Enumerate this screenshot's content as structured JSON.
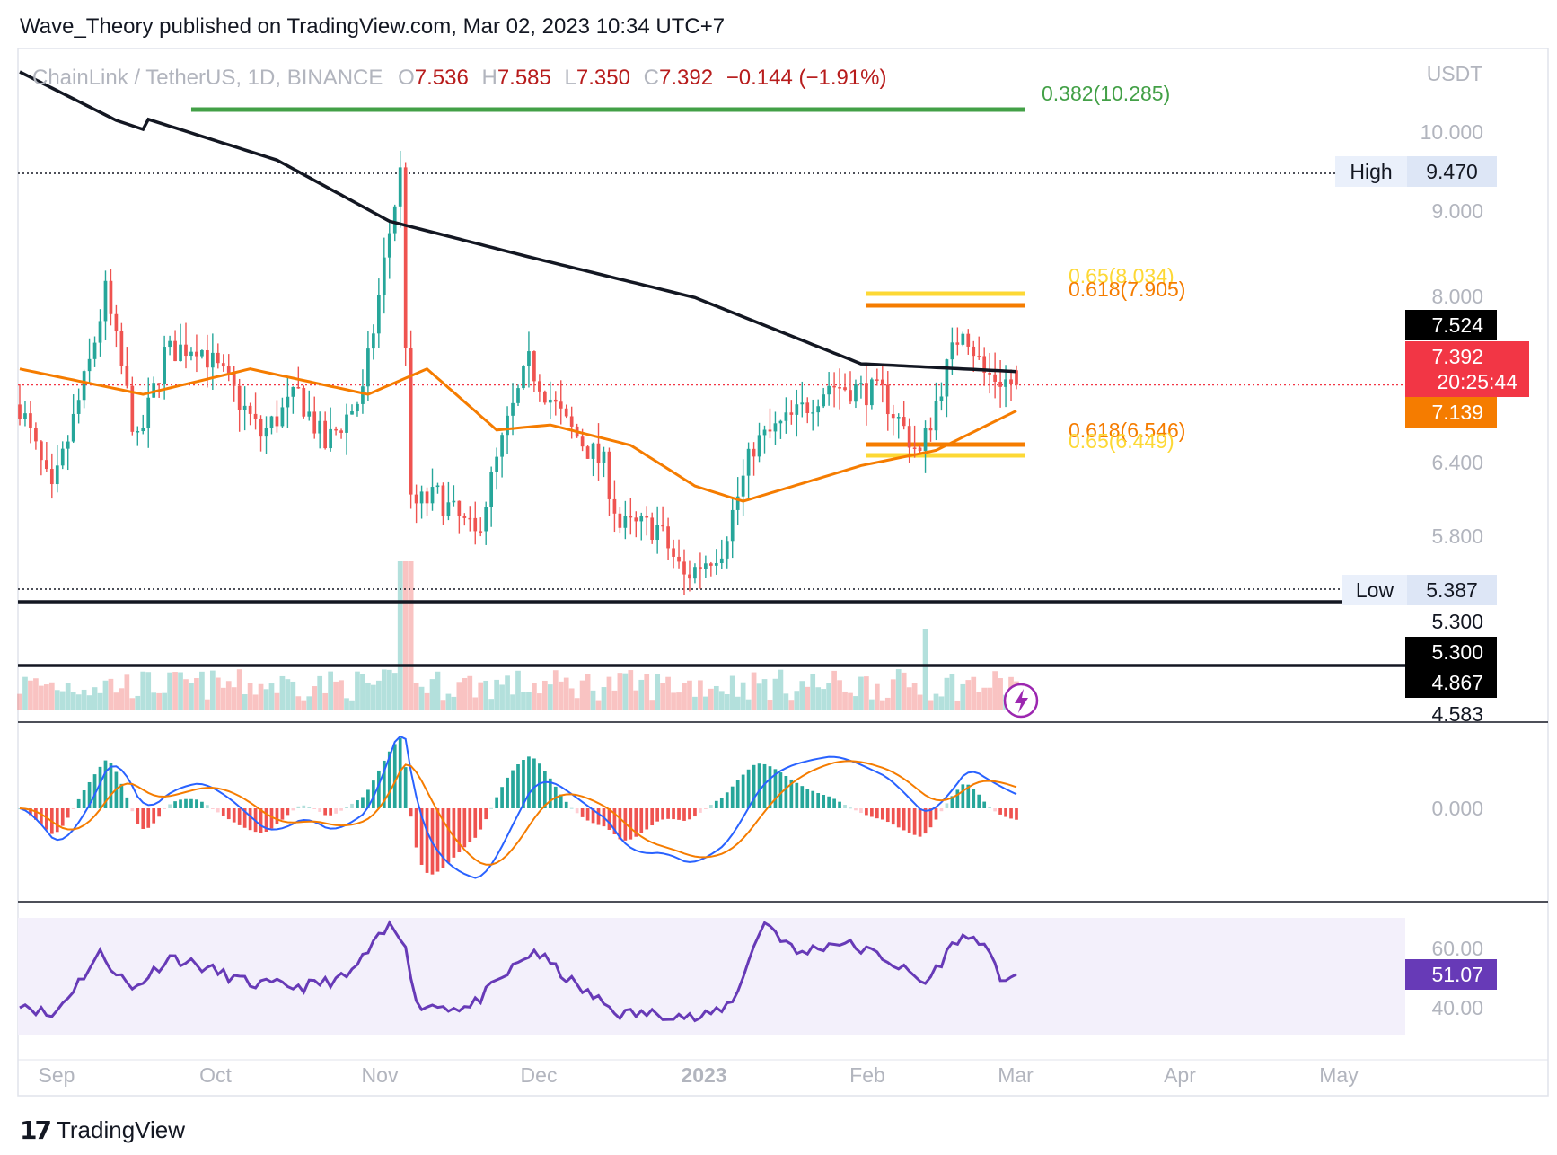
{
  "header": {
    "publisher": "Wave_Theory published on TradingView.com, Mar 02, 2023 10:34 UTC+7"
  },
  "legend": {
    "symbol": "ChainLink / TetherUS, 1D, BINANCE",
    "o_label": "O",
    "o_value": "7.536",
    "h_label": "H",
    "h_value": "7.585",
    "l_label": "L",
    "l_value": "7.350",
    "c_label": "C",
    "c_value": "7.392",
    "change": "−0.144 (−1.91%)"
  },
  "price_axis": {
    "currency": "USDT",
    "ticks": [
      "10.000",
      "9.000",
      "8.000",
      "6.400",
      "5.800",
      "5.300",
      "4.583"
    ],
    "high_label": "High",
    "high_value": "9.470",
    "low_label": "Low",
    "low_value": "5.387",
    "ma200_value": "7.524",
    "last_price": "7.392",
    "countdown": "20:25:44",
    "ma50_value": "7.139",
    "support1": "5.300",
    "support2": "4.867"
  },
  "fib_labels": {
    "top": "0.382(10.285)",
    "upper_65": "0.65(8.034)",
    "upper_618": "0.618(7.905)",
    "lower_618": "0.618(6.546)",
    "lower_65": "0.65(6.449)"
  },
  "macd_axis": {
    "zero": "0.000"
  },
  "rsi_axis": {
    "upper": "60.00",
    "lower": "40.00",
    "value": "51.07"
  },
  "time_axis": [
    "Sep",
    "Oct",
    "Nov",
    "Dec",
    "2023",
    "Feb",
    "Mar",
    "Apr",
    "May"
  ],
  "footer": {
    "logo_mark": "17",
    "logo_name": "TradingView"
  },
  "colors": {
    "up": "#26a69a",
    "down": "#ef5350",
    "ma200": "#131722",
    "ma50": "#f57c00",
    "fib_green": "#43a047",
    "fib_orange": "#f57c00",
    "fib_yellow": "#fdd835",
    "macd": "#2962ff",
    "signal": "#f57c00",
    "rsi": "#673ab7",
    "last_price_bg": "#f23645"
  },
  "chart_data": {
    "type": "candlestick",
    "title": "ChainLink / TetherUS, 1D, BINANCE",
    "x_range": [
      "2022-08-28",
      "2023-03-02"
    ],
    "ylim": [
      4.583,
      10.6
    ],
    "price_keypoints": [
      [
        "2022-08-28",
        7.2
      ],
      [
        "2022-09-03",
        6.3
      ],
      [
        "2022-09-10",
        7.6
      ],
      [
        "2022-09-13",
        8.3
      ],
      [
        "2022-09-19",
        6.8
      ],
      [
        "2022-09-24",
        7.7
      ],
      [
        "2022-09-30",
        7.8
      ],
      [
        "2022-10-06",
        7.4
      ],
      [
        "2022-10-12",
        6.9
      ],
      [
        "2022-10-19",
        7.3
      ],
      [
        "2022-10-24",
        6.8
      ],
      [
        "2022-10-31",
        7.3
      ],
      [
        "2022-11-05",
        8.9
      ],
      [
        "2022-11-07",
        9.47
      ],
      [
        "2022-11-09",
        6.2
      ],
      [
        "2022-11-14",
        6.3
      ],
      [
        "2022-11-21",
        5.9
      ],
      [
        "2022-11-27",
        7.0
      ],
      [
        "2022-12-01",
        7.6
      ],
      [
        "2022-12-08",
        7.0
      ],
      [
        "2022-12-15",
        6.6
      ],
      [
        "2022-12-18",
        6.0
      ],
      [
        "2022-12-25",
        6.0
      ],
      [
        "2022-12-30",
        5.5
      ],
      [
        "2023-01-06",
        5.8
      ],
      [
        "2023-01-12",
        6.8
      ],
      [
        "2023-01-20",
        7.1
      ],
      [
        "2023-01-26",
        7.4
      ],
      [
        "2023-02-05",
        7.3
      ],
      [
        "2023-02-12",
        6.7
      ],
      [
        "2023-02-16",
        7.4
      ],
      [
        "2023-02-20",
        8.0
      ],
      [
        "2023-02-24",
        7.5
      ],
      [
        "2023-03-02",
        7.392
      ]
    ],
    "ma200_keypoints": [
      [
        "2022-08-28",
        10.55
      ],
      [
        "2022-09-15",
        10.1
      ],
      [
        "2022-10-15",
        9.6
      ],
      [
        "2022-11-05",
        9.0
      ],
      [
        "2022-12-01",
        8.65
      ],
      [
        "2023-01-01",
        8.25
      ],
      [
        "2023-02-01",
        7.6
      ],
      [
        "2023-03-02",
        7.524
      ]
    ],
    "ma50_keypoints": [
      [
        "2022-08-28",
        7.55
      ],
      [
        "2022-09-20",
        7.3
      ],
      [
        "2022-10-10",
        7.55
      ],
      [
        "2022-11-01",
        7.3
      ],
      [
        "2022-11-12",
        7.55
      ],
      [
        "2022-11-25",
        6.95
      ],
      [
        "2022-12-05",
        7.0
      ],
      [
        "2022-12-20",
        6.8
      ],
      [
        "2023-01-01",
        6.4
      ],
      [
        "2023-01-10",
        6.25
      ],
      [
        "2023-02-01",
        6.6
      ],
      [
        "2023-02-15",
        6.75
      ],
      [
        "2023-03-02",
        7.139
      ]
    ],
    "fib_levels": [
      {
        "label": "0.382(10.285)",
        "value": 10.285,
        "from": "2022-09-29",
        "to": "2023-03-02"
      },
      {
        "label": "0.65(8.034)",
        "value": 8.034,
        "from": "2023-02-02",
        "to": "2023-03-02"
      },
      {
        "label": "0.618(7.905)",
        "value": 7.905,
        "from": "2023-02-02",
        "to": "2023-03-02"
      },
      {
        "label": "0.618(6.546)",
        "value": 6.546,
        "from": "2023-02-02",
        "to": "2023-03-02"
      },
      {
        "label": "0.65(6.449)",
        "value": 6.449,
        "from": "2023-02-02",
        "to": "2023-03-02"
      }
    ],
    "horizontal_lines": [
      {
        "value": 9.47,
        "style": "dotted"
      },
      {
        "value": 5.387,
        "style": "dotted"
      },
      {
        "value": 5.3,
        "style": "solid"
      },
      {
        "value": 4.867,
        "style": "solid"
      },
      {
        "value": 7.392,
        "style": "dotted-red"
      }
    ],
    "rsi_keypoints": [
      [
        "2022-08-28",
        42
      ],
      [
        "2022-09-03",
        37
      ],
      [
        "2022-09-12",
        58
      ],
      [
        "2022-09-18",
        46
      ],
      [
        "2022-09-25",
        57
      ],
      [
        "2022-10-02",
        53
      ],
      [
        "2022-10-10",
        48
      ],
      [
        "2022-10-20",
        47
      ],
      [
        "2022-10-28",
        50
      ],
      [
        "2022-11-05",
        67
      ],
      [
        "2022-11-08",
        62
      ],
      [
        "2022-11-10",
        41
      ],
      [
        "2022-11-20",
        40
      ],
      [
        "2022-11-28",
        53
      ],
      [
        "2022-12-02",
        59
      ],
      [
        "2022-12-10",
        47
      ],
      [
        "2022-12-18",
        38
      ],
      [
        "2022-12-28",
        38
      ],
      [
        "2023-01-02",
        36
      ],
      [
        "2023-01-08",
        42
      ],
      [
        "2023-01-14",
        69
      ],
      [
        "2023-01-20",
        58
      ],
      [
        "2023-01-28",
        62
      ],
      [
        "2023-02-05",
        57
      ],
      [
        "2023-02-13",
        48
      ],
      [
        "2023-02-19",
        63
      ],
      [
        "2023-02-23",
        63
      ],
      [
        "2023-02-27",
        50
      ],
      [
        "2023-03-02",
        51.07
      ]
    ]
  }
}
